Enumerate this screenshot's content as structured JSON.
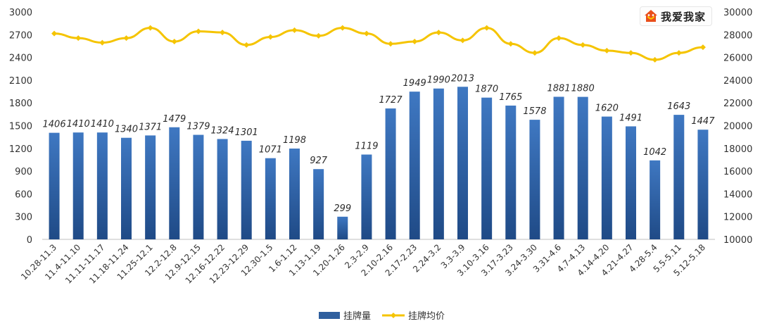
{
  "watermark": {
    "text": "我爱我家",
    "icon": "house-logo-icon"
  },
  "chart_data": {
    "type": "bar",
    "categories": [
      "10.28-11.3",
      "11.4-11.10",
      "11.11-11.17",
      "11.18-11.24",
      "11.25-12.1",
      "12.2-12.8",
      "12.9-12.15",
      "12.16-12.22",
      "12.23-12.29",
      "12.30-1.5",
      "1.6-1.12",
      "1.13-1.19",
      "1.20-1.26",
      "2.3-2.9",
      "2.10-2.16",
      "2.17-2.23",
      "2.24-3.2",
      "3.3-3.9",
      "3.10-3.16",
      "3.17-3.23",
      "3.24-3.30",
      "3.31-4.6",
      "4.7-4.13",
      "4.14-4.20",
      "4.21-4.27",
      "4.28-5.4",
      "5.5-5.11",
      "5.12-5.18"
    ],
    "series": [
      {
        "name": "挂牌量",
        "chart": "bar",
        "axis": "left",
        "color": "#2f5f9e",
        "values": [
          1406,
          1410,
          1410,
          1340,
          1371,
          1479,
          1379,
          1324,
          1301,
          1071,
          1198,
          927,
          299,
          1119,
          1727,
          1949,
          1990,
          2013,
          1870,
          1765,
          1578,
          1881,
          1880,
          1620,
          1491,
          1042,
          1643,
          1447
        ]
      },
      {
        "name": "挂牌均价",
        "chart": "line",
        "axis": "right",
        "color": "#f5c400",
        "values": [
          28100,
          27700,
          27300,
          27700,
          28600,
          27400,
          28300,
          28200,
          27100,
          27800,
          28400,
          27900,
          28600,
          28100,
          27200,
          27400,
          28200,
          27500,
          28600,
          27200,
          26400,
          27700,
          27100,
          26600,
          26400,
          25800,
          26400,
          26900
        ]
      }
    ],
    "y_left": {
      "ylim": [
        0,
        3000
      ],
      "ticks": [
        "0",
        "300",
        "600",
        "900",
        "1200",
        "1500",
        "1800",
        "2100",
        "2400",
        "2700",
        "3000"
      ]
    },
    "y_right": {
      "ylim": [
        10000,
        30000
      ],
      "ticks": [
        "10000",
        "12000",
        "14000",
        "16000",
        "18000",
        "20000",
        "22000",
        "24000",
        "26000",
        "28000",
        "30000"
      ]
    },
    "grid": false,
    "legend": "bottom-center"
  }
}
